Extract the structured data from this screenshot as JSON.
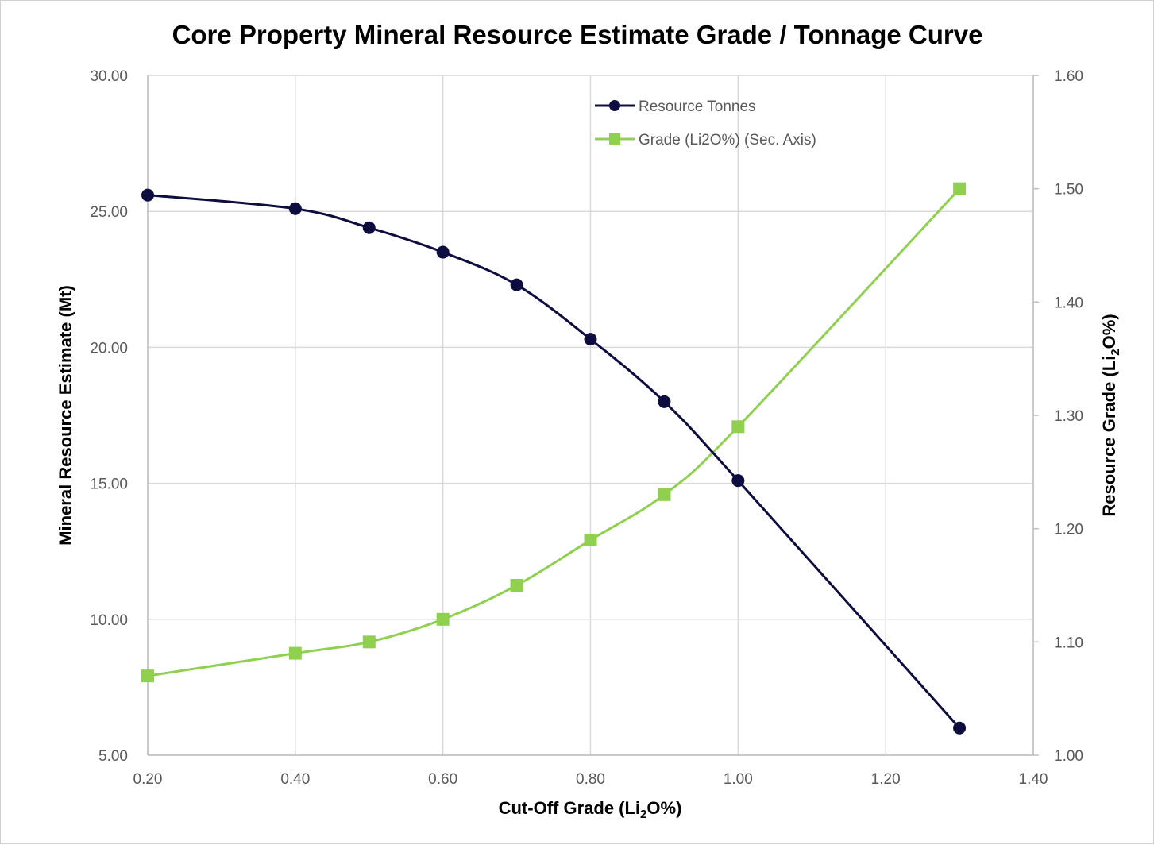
{
  "chart_data": {
    "type": "line",
    "title": "Core Property Mineral Resource Estimate Grade / Tonnage Curve",
    "xlabel": {
      "main": "Cut-Off Grade (Li",
      "sub": "2",
      "tail": "O%)"
    },
    "ylabel": "Mineral Resource Estimate (Mt)",
    "y2label": {
      "main": "Resource Grade (Li",
      "sub": "2",
      "tail": "O%)"
    },
    "xlim": [
      0.2,
      1.4
    ],
    "ylim": [
      5,
      30
    ],
    "y2lim": [
      1.0,
      1.6
    ],
    "x_ticks": [
      "0.20",
      "0.40",
      "0.60",
      "0.80",
      "1.00",
      "1.20",
      "1.40"
    ],
    "y_ticks": [
      "5.00",
      "10.00",
      "15.00",
      "20.00",
      "25.00",
      "30.00"
    ],
    "y2_ticks": [
      "1.00",
      "1.10",
      "1.20",
      "1.30",
      "1.40",
      "1.50",
      "1.60"
    ],
    "grid": true,
    "legend_position": "top-center",
    "series": [
      {
        "name": "Resource Tonnes",
        "axis": "primary",
        "marker": "circle",
        "color": "#0d0d3f",
        "x": [
          0.2,
          0.4,
          0.5,
          0.6,
          0.7,
          0.8,
          0.9,
          1.0,
          1.3
        ],
        "y": [
          25.6,
          25.1,
          24.4,
          23.5,
          22.3,
          20.3,
          18.0,
          15.1,
          6.0
        ]
      },
      {
        "name": "Grade (Li2O%) (Sec. Axis)",
        "axis": "secondary",
        "marker": "square",
        "color": "#8fd14f",
        "x": [
          0.2,
          0.4,
          0.5,
          0.6,
          0.7,
          0.8,
          0.9,
          1.0,
          1.3
        ],
        "y": [
          1.07,
          1.09,
          1.1,
          1.12,
          1.15,
          1.19,
          1.23,
          1.29,
          1.5
        ]
      }
    ]
  }
}
